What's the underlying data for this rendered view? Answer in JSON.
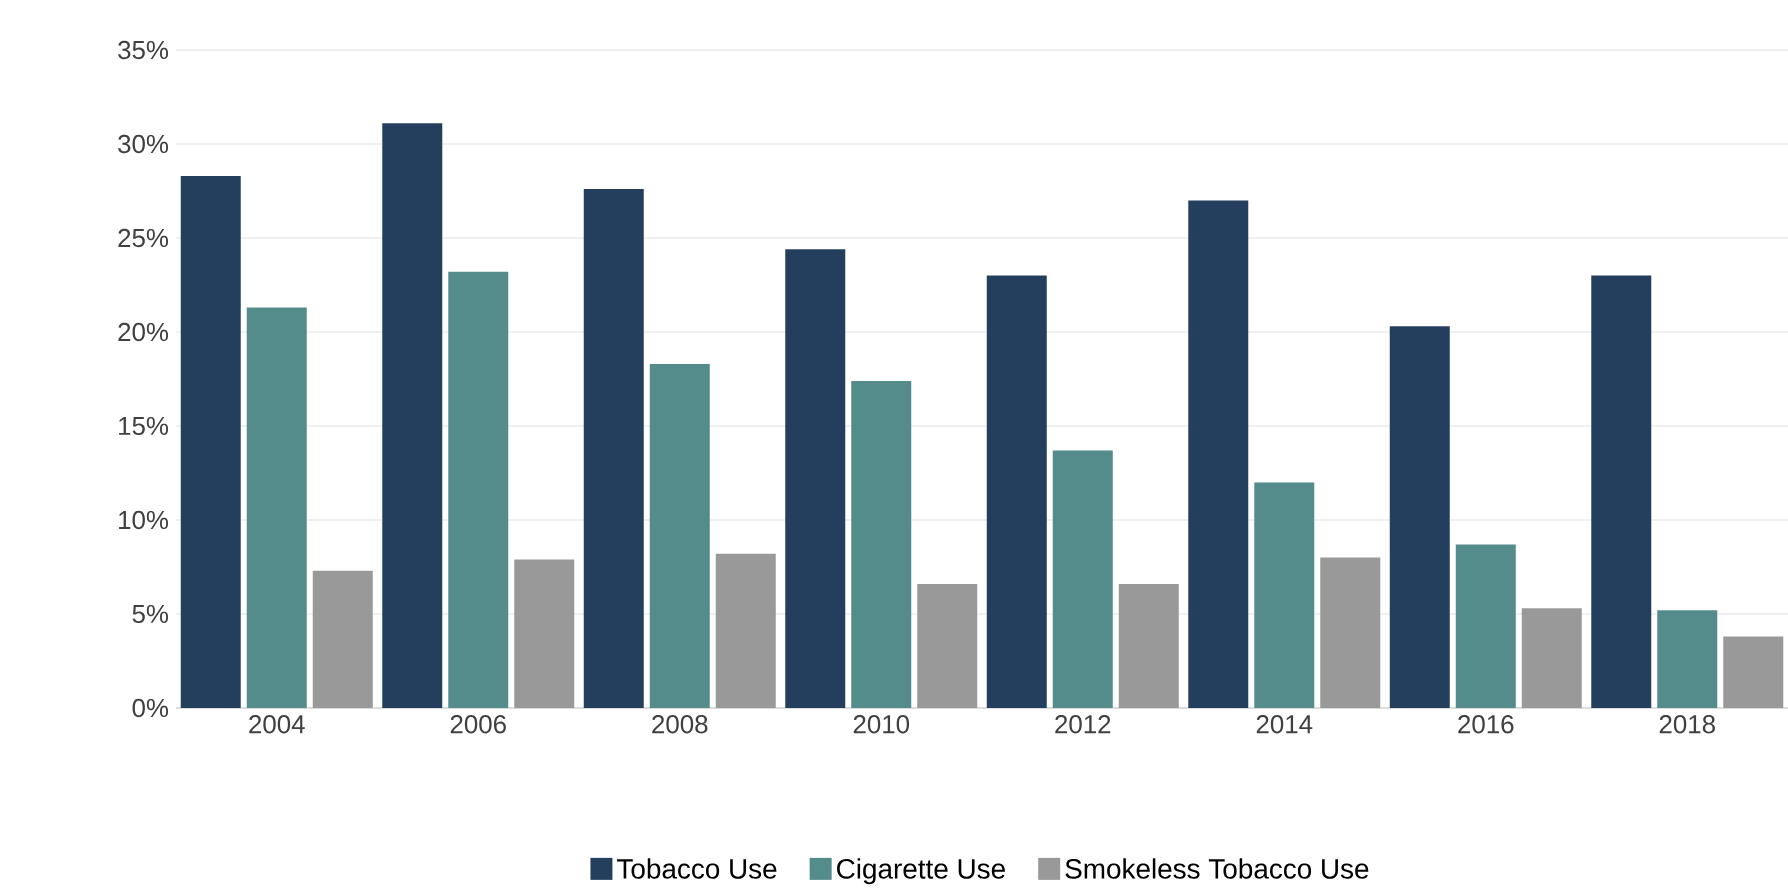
{
  "chart_data": {
    "type": "bar",
    "categories": [
      "2004",
      "2006",
      "2008",
      "2010",
      "2012",
      "2014",
      "2016",
      "2018"
    ],
    "series": [
      {
        "name": "Tobacco Use",
        "color": "#243f5e",
        "values": [
          28.3,
          31.1,
          27.6,
          24.4,
          23.0,
          27.0,
          20.3,
          23.0
        ]
      },
      {
        "name": "Cigarette Use",
        "color": "#548b8b",
        "values": [
          21.3,
          23.2,
          18.3,
          17.4,
          13.7,
          12.0,
          8.7,
          5.2
        ]
      },
      {
        "name": "Smokeless Tobacco Use",
        "color": "#999999",
        "values": [
          7.3,
          7.9,
          8.2,
          6.6,
          6.6,
          8.0,
          5.3,
          3.8
        ]
      }
    ],
    "ylim": [
      0,
      35
    ],
    "yticks": [
      {
        "value": 0,
        "label": "0%"
      },
      {
        "value": 5,
        "label": "5%"
      },
      {
        "value": 10,
        "label": "10%"
      },
      {
        "value": 15,
        "label": "15%"
      },
      {
        "value": 20,
        "label": "20%"
      },
      {
        "value": 25,
        "label": "25%"
      },
      {
        "value": 30,
        "label": "30%"
      },
      {
        "value": 35,
        "label": "35%"
      }
    ],
    "grid": "y",
    "legend": "bottom"
  }
}
